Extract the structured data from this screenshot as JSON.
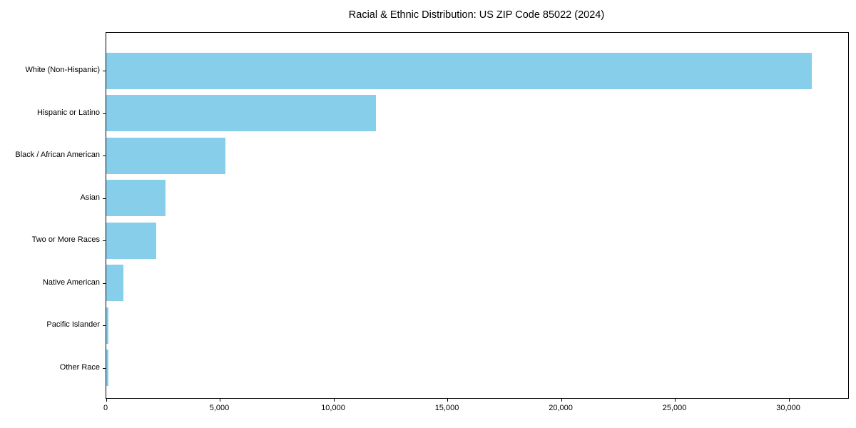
{
  "chart_data": {
    "type": "bar",
    "orientation": "horizontal",
    "title": "Racial & Ethnic Distribution: US ZIP Code 85022 (2024)",
    "categories": [
      "White (Non-Hispanic)",
      "Hispanic or Latino",
      "Black / African American",
      "Asian",
      "Two or More Races",
      "Native American",
      "Pacific Islander",
      "Other Race"
    ],
    "values": [
      31000,
      11850,
      5230,
      2600,
      2200,
      750,
      80,
      95
    ],
    "xlabel": "",
    "ylabel": "",
    "xlim": [
      0,
      32600
    ],
    "x_ticks": [
      0,
      5000,
      10000,
      15000,
      20000,
      25000,
      30000
    ],
    "x_tick_labels": [
      "0",
      "5,000",
      "10,000",
      "15,000",
      "20,000",
      "25,000",
      "30,000"
    ],
    "bar_color": "#87CEEB",
    "frame_color": "#000000",
    "grid": false,
    "legend": null
  }
}
